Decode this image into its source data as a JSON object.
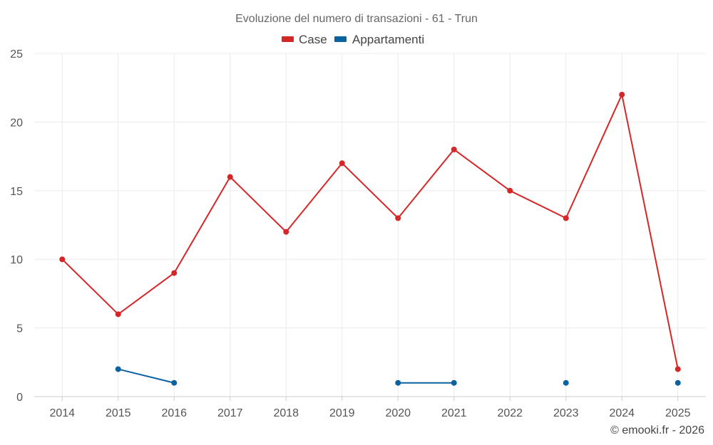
{
  "chart_data": {
    "type": "line",
    "title": "Evoluzione del numero di transazioni - 61 - Trun",
    "categories": [
      "2014",
      "2015",
      "2016",
      "2017",
      "2018",
      "2019",
      "2020",
      "2021",
      "2022",
      "2023",
      "2024",
      "2025"
    ],
    "series": [
      {
        "name": "Case",
        "color": "#d62728",
        "values": [
          10,
          6,
          9,
          16,
          12,
          17,
          13,
          18,
          15,
          13,
          22,
          2
        ]
      },
      {
        "name": "Appartamenti",
        "color": "#0b62a0",
        "values": [
          null,
          2,
          1,
          null,
          null,
          null,
          1,
          1,
          null,
          1,
          null,
          1
        ]
      }
    ],
    "ylim": [
      0,
      25
    ],
    "yticks": [
      0,
      5,
      10,
      15,
      20,
      25
    ],
    "legend_position": "top-center",
    "grid": true
  },
  "credit": "© emooki.fr - 2026"
}
